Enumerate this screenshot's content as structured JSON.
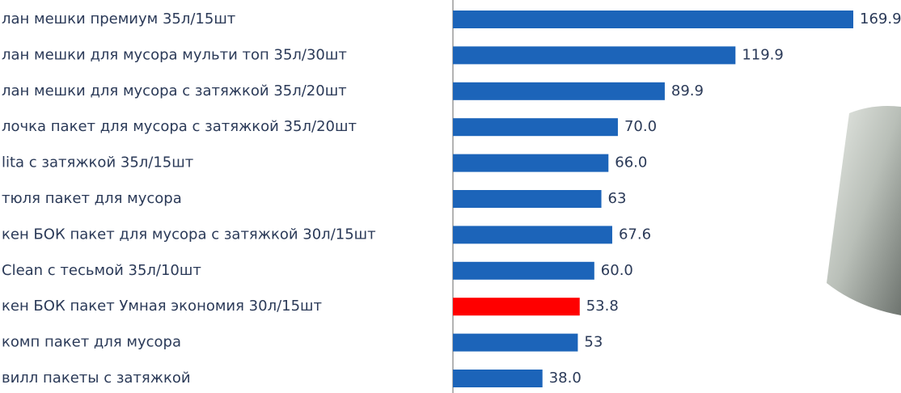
{
  "chart_data": {
    "type": "bar",
    "orientation": "horizontal",
    "categories": [
      "лан мешки премиум 35л/15шт",
      "лан мешки для мусора мульти топ 35л/30шт",
      "лан мешки для мусора с затяжкой 35л/20шт",
      "лочка пакет для мусора с затяжкой  35л/20шт",
      "lita с затяжкой 35л/15шт",
      "тюля пакет для мусора",
      "кен БОК пакет для мусора с затяжкой 30л/15шт",
      "Clean с тесьмой 35л/10шт",
      "кен БОК пакет Умная экономия 30л/15шт",
      "комп пакет для мусора",
      "вилл пакеты с затяжкой"
    ],
    "values": [
      169.9,
      119.9,
      89.9,
      70.0,
      66.0,
      63,
      67.6,
      60.0,
      53.8,
      53,
      38.0
    ],
    "value_labels": [
      "169.9",
      "119.9",
      "89.9",
      "70.0",
      "66.0",
      "63",
      "67.6",
      "60.0",
      "53.8",
      "53",
      "38.0"
    ],
    "colors": [
      "#1c64b9",
      "#1c64b9",
      "#1c64b9",
      "#1c64b9",
      "#1c64b9",
      "#1c64b9",
      "#1c64b9",
      "#1c64b9",
      "#ff0000",
      "#1c64b9",
      "#1c64b9"
    ]
  }
}
